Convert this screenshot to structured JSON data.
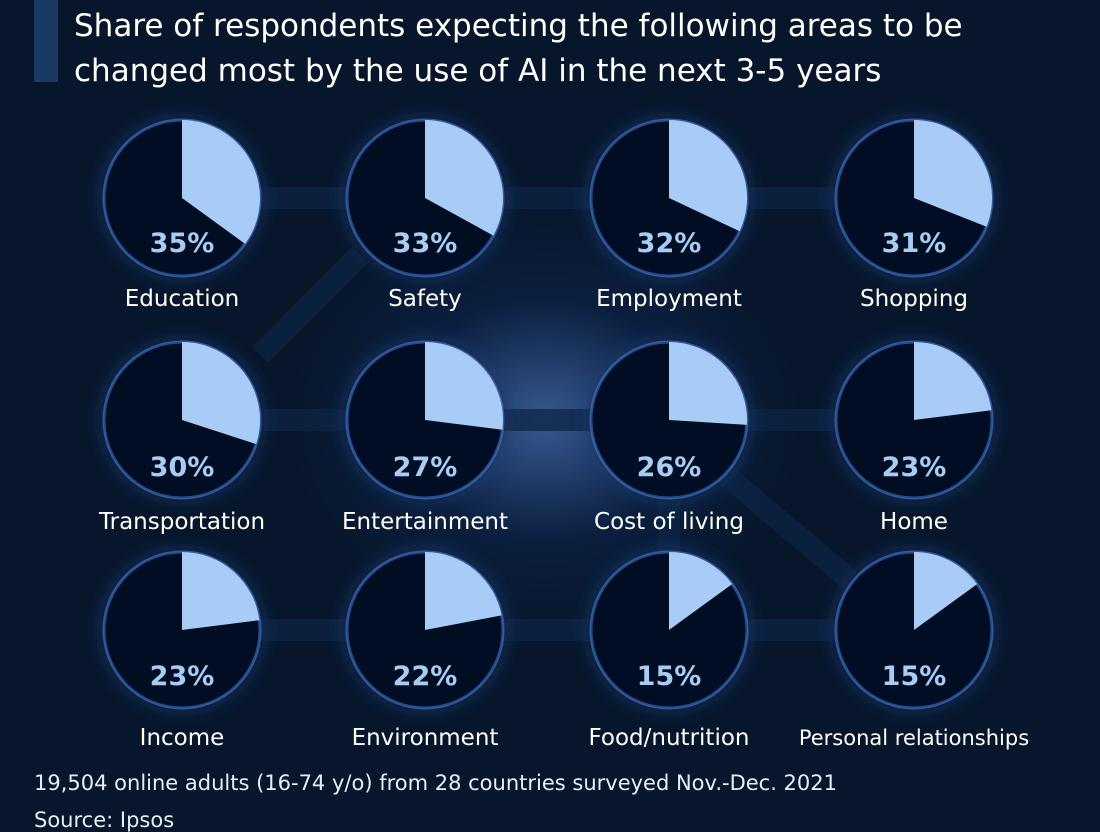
{
  "header": {
    "title_line1": "Share of respondents expecting the following areas to be",
    "title_line2": "changed most by the use of AI in the next 3-5 years"
  },
  "footer": {
    "note": "19,504 online adults (16-74 y/o) from 28 countries surveyed Nov.-Dec. 2021",
    "source": "Source: Ipsos"
  },
  "colors": {
    "background": "#07162b",
    "pie_base": "#050f22",
    "pie_slice": "#a9ccf7",
    "glow": "#3f7fe0"
  },
  "chart_data": {
    "type": "pie",
    "unit": "%",
    "items": [
      {
        "category": "Education",
        "value": 35,
        "label": "35%"
      },
      {
        "category": "Safety",
        "value": 33,
        "label": "33%"
      },
      {
        "category": "Employment",
        "value": 32,
        "label": "32%"
      },
      {
        "category": "Shopping",
        "value": 31,
        "label": "31%"
      },
      {
        "category": "Transportation",
        "value": 30,
        "label": "30%"
      },
      {
        "category": "Entertainment",
        "value": 27,
        "label": "27%"
      },
      {
        "category": "Cost of living",
        "value": 26,
        "label": "26%"
      },
      {
        "category": "Home",
        "value": 23,
        "label": "23%"
      },
      {
        "category": "Income",
        "value": 23,
        "label": "23%"
      },
      {
        "category": "Environment",
        "value": 22,
        "label": "22%"
      },
      {
        "category": "Food/nutrition",
        "value": 15,
        "label": "15%"
      },
      {
        "category": "Personal relationships",
        "value": 15,
        "label": "15%"
      }
    ]
  }
}
